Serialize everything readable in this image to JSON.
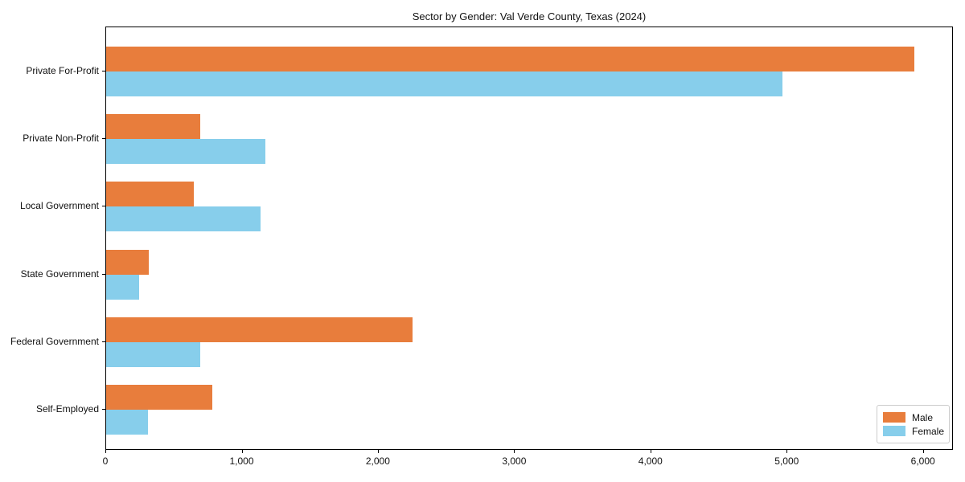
{
  "figure": {
    "background_color": "#ffffff",
    "frame_color": "#000000"
  },
  "chart_data": {
    "type": "bar",
    "orientation": "horizontal",
    "title": "Sector by Gender: Val Verde County, Texas (2024)",
    "categories": [
      "Private For-Profit",
      "Private Non-Profit",
      "Local Government",
      "State Government",
      "Federal Government",
      "Self-Employed"
    ],
    "series": [
      {
        "name": "Male",
        "color": "#e87d3c",
        "values": [
          5930,
          690,
          645,
          310,
          2250,
          780
        ]
      },
      {
        "name": "Female",
        "color": "#87ceeb",
        "values": [
          4960,
          1170,
          1135,
          240,
          690,
          305
        ]
      }
    ],
    "xlabel": "",
    "ylabel": "",
    "xlim": [
      0,
      6220
    ],
    "xticks": {
      "values": [
        0,
        1000,
        2000,
        3000,
        4000,
        5000,
        6000
      ],
      "labels": [
        "0",
        "1,000",
        "2,000",
        "3,000",
        "4,000",
        "5,000",
        "6,000"
      ]
    },
    "grid": false,
    "legend": {
      "position": "lower right"
    }
  }
}
